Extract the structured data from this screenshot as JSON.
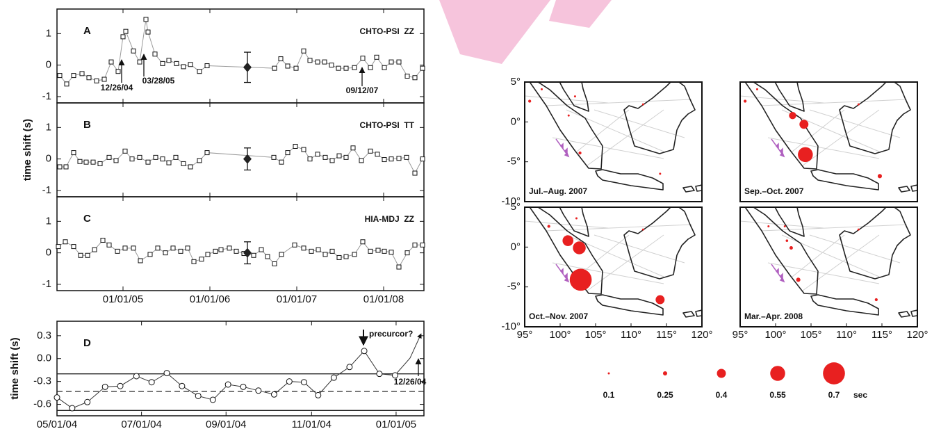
{
  "chart_data": [
    {
      "type": "line",
      "panel": "A",
      "label": "CHTO-PSI  ZZ",
      "marker": "square",
      "x": [
        2004.272,
        2004.352,
        2004.432,
        2004.528,
        2004.608,
        2004.696,
        2004.784,
        2004.864,
        2004.944,
        2005.0,
        2005.032,
        2005.12,
        2005.192,
        2005.264,
        2005.288,
        2005.368,
        2005.456,
        2005.528,
        2005.616,
        2005.696,
        2005.776,
        2005.88,
        2005.968,
        2006.744,
        2006.816,
        2006.896,
        2006.992,
        2007.08,
        2007.152,
        2007.24,
        2007.32,
        2007.4,
        2007.48,
        2007.568,
        2007.664,
        2007.76,
        2007.848,
        2007.92,
        2008.008,
        2008.088,
        2008.176,
        2008.272,
        2008.36,
        2008.448
      ],
      "values": [
        -0.33,
        -0.6,
        -0.33,
        -0.27,
        -0.4,
        -0.5,
        -0.45,
        0.1,
        -0.2,
        0.9,
        1.07,
        0.45,
        0.1,
        1.45,
        1.05,
        0.35,
        0.05,
        0.15,
        0.05,
        -0.05,
        0.02,
        -0.2,
        -0.02,
        -0.1,
        0.2,
        -0.03,
        -0.1,
        0.45,
        0.15,
        0.1,
        0.1,
        0.0,
        -0.1,
        -0.1,
        -0.08,
        0.22,
        -0.08,
        0.25,
        -0.08,
        0.1,
        0.1,
        -0.35,
        -0.4,
        -0.1
      ],
      "mean": {
        "x": 2006.432,
        "value": -0.07,
        "error": 0.48
      },
      "xlim": [
        2004.24,
        2008.464
      ],
      "ylim": [
        -1.2,
        1.78
      ],
      "yticks": [
        -1,
        0,
        1
      ],
      "annotations": [
        "12/26/04",
        "03/28/05",
        "09/12/07"
      ]
    },
    {
      "type": "line",
      "panel": "B",
      "label": "CHTO-PSI  TT",
      "ylabel": "time shift (s)",
      "marker": "square",
      "x": [
        2004.272,
        2004.344,
        2004.432,
        2004.504,
        2004.576,
        2004.656,
        2004.736,
        2004.84,
        2004.92,
        2005.024,
        2005.104,
        2005.192,
        2005.288,
        2005.376,
        2005.456,
        2005.528,
        2005.608,
        2005.696,
        2005.776,
        2005.88,
        2005.968,
        2006.736,
        2006.824,
        2006.896,
        2006.984,
        2007.08,
        2007.152,
        2007.24,
        2007.328,
        2007.408,
        2007.488,
        2007.568,
        2007.648,
        2007.744,
        2007.848,
        2007.928,
        2008.008,
        2008.088,
        2008.176,
        2008.264,
        2008.36,
        2008.448
      ],
      "values": [
        -0.25,
        -0.25,
        0.2,
        -0.08,
        -0.1,
        -0.1,
        -0.15,
        0.05,
        -0.05,
        0.25,
        0,
        0.05,
        -0.1,
        0.05,
        0,
        -0.12,
        0.05,
        -0.15,
        -0.25,
        -0.05,
        0.2,
        0.05,
        -0.1,
        0.2,
        0.4,
        0.3,
        0,
        0.15,
        0.05,
        -0.05,
        0.1,
        0.05,
        0.35,
        -0.05,
        0.25,
        0.15,
        -0.02,
        0,
        0.02,
        0.05,
        -0.45,
        0
      ],
      "mean": {
        "x": 2006.432,
        "value": 0,
        "error": 0.35
      },
      "xlim": [
        2004.24,
        2008.464
      ],
      "ylim": [
        -1.2,
        1.78
      ],
      "yticks": [
        -1,
        0,
        1
      ]
    },
    {
      "type": "line",
      "panel": "C",
      "label": "HIA-MDJ  ZZ",
      "marker": "square",
      "x": [
        2004.256,
        2004.336,
        2004.432,
        2004.512,
        2004.592,
        2004.672,
        2004.768,
        2004.84,
        2004.936,
        2005.024,
        2005.12,
        2005.2,
        2005.312,
        2005.4,
        2005.488,
        2005.576,
        2005.664,
        2005.744,
        2005.816,
        2005.904,
        2005.976,
        2006.064,
        2006.128,
        2006.224,
        2006.304,
        2006.392,
        2006.504,
        2006.592,
        2006.664,
        2006.744,
        2006.824,
        2006.976,
        2007.08,
        2007.168,
        2007.248,
        2007.328,
        2007.408,
        2007.488,
        2007.568,
        2007.664,
        2007.76,
        2007.848,
        2007.936,
        2008.008,
        2008.088,
        2008.176,
        2008.272,
        2008.36,
        2008.448
      ],
      "values": [
        0.2,
        0.35,
        0.2,
        -0.08,
        -0.08,
        0.1,
        0.4,
        0.25,
        0.05,
        0.15,
        0.15,
        -0.25,
        -0.05,
        0.15,
        0,
        0.15,
        0.05,
        0.15,
        -0.28,
        -0.2,
        -0.05,
        0.05,
        0.1,
        0.15,
        0.05,
        -0.02,
        -0.08,
        0.1,
        -0.12,
        -0.35,
        -0.05,
        0.25,
        0.15,
        0.05,
        0.1,
        -0.05,
        0.05,
        -0.15,
        -0.12,
        -0.05,
        0.35,
        0.05,
        0.08,
        0.05,
        0.02,
        -0.45,
        0,
        0.25,
        0.25
      ],
      "mean": {
        "x": 2006.432,
        "value": 0,
        "error": 0.35
      },
      "xlim": [
        2004.24,
        2008.464
      ],
      "ylim": [
        -1.2,
        1.78
      ],
      "yticks": [
        -1,
        0,
        1
      ],
      "xticks": [
        {
          "value": 2005,
          "label": "01/01/05"
        },
        {
          "value": 2006,
          "label": "01/01/06"
        },
        {
          "value": 2007,
          "label": "01/01/07"
        },
        {
          "value": 2008,
          "label": "01/01/08"
        }
      ]
    },
    {
      "type": "line",
      "panel": "D",
      "ylabel": "time shift (s)",
      "marker": "circle",
      "x": [
        2004.33,
        2004.36,
        2004.39,
        2004.425,
        2004.455,
        2004.487,
        2004.517,
        2004.547,
        2004.577,
        2004.609,
        2004.638,
        2004.668,
        2004.698,
        2004.728,
        2004.759,
        2004.789,
        2004.818,
        2004.846,
        2004.877,
        2004.908,
        2004.937,
        2004.967,
        2004.998
      ],
      "values": [
        -0.51,
        -0.65,
        -0.57,
        -0.37,
        -0.36,
        -0.23,
        -0.31,
        -0.19,
        -0.36,
        -0.49,
        -0.54,
        -0.34,
        -0.37,
        -0.42,
        -0.47,
        -0.3,
        -0.31,
        -0.48,
        -0.25,
        -0.11,
        0.1,
        -0.2,
        -0.22
      ],
      "reference_lines": [
        {
          "value": -0.2,
          "style": "solid"
        },
        {
          "value": -0.43,
          "style": "dashed"
        },
        {
          "value": -0.68,
          "style": "solid"
        }
      ],
      "xlim": [
        2004.33,
        2005.055
      ],
      "ylim": [
        -0.75,
        0.49
      ],
      "xticks": [
        {
          "value": 2004.33,
          "label": "05/01/04"
        },
        {
          "value": 2004.497,
          "label": "07/01/04"
        },
        {
          "value": 2004.664,
          "label": "09/01/04"
        },
        {
          "value": 2004.833,
          "label": "11/01/04"
        },
        {
          "value": 2005,
          "label": "01/01/05"
        }
      ],
      "yticks": [
        0.3,
        {
          "value": 0,
          "label": "0.0"
        },
        -0.3,
        -0.6
      ],
      "annotations": [
        "precurcor?",
        "12/26/04"
      ]
    },
    {
      "type": "bubble",
      "title": "Jul.–Aug. 2007",
      "color": "#e82020",
      "x": [
        95.7,
        97.4,
        102.1,
        101.2,
        102.8,
        111.7,
        114.1
      ],
      "values": [
        2.6,
        4.1,
        3.2,
        0.8,
        -3.9,
        2.2,
        -6.5
      ],
      "sizes": [
        0.2,
        0.12,
        0.15,
        0.15,
        0.2,
        0.1,
        0.1
      ],
      "xlim": [
        95,
        120
      ],
      "ylim": [
        -10,
        5
      ],
      "yticks": [
        {
          "value": 5,
          "label": "5°"
        },
        {
          "value": 0,
          "label": "0°"
        },
        {
          "value": -5,
          "label": "-5°"
        },
        {
          "value": -10,
          "label": "-10°"
        }
      ]
    },
    {
      "type": "bubble",
      "title": "Sep.–Oct. 2007",
      "color": "#e82020",
      "x": [
        95.7,
        97.4,
        102.4,
        104,
        104.2,
        114.7,
        111.7
      ],
      "values": [
        2.6,
        4.1,
        0.8,
        -0.3,
        -4.1,
        -6.8,
        2.2
      ],
      "sizes": [
        0.2,
        0.1,
        0.35,
        0.4,
        0.55,
        0.25,
        0.1
      ],
      "xlim": [
        95,
        120
      ],
      "ylim": [
        -10,
        5
      ]
    },
    {
      "type": "bubble",
      "title": "Oct.–Nov. 2007",
      "color": "#e82020",
      "x": [
        98.4,
        102.3,
        101.1,
        102.7,
        102.9,
        114.1,
        111.7
      ],
      "values": [
        2.6,
        3.6,
        0.8,
        -0.1,
        -4.1,
        -6.6,
        2.2
      ],
      "sizes": [
        0.2,
        0.1,
        0.45,
        0.5,
        0.7,
        0.4,
        0.1
      ],
      "xlim": [
        95,
        120
      ],
      "ylim": [
        -10,
        5
      ],
      "xticks": [
        {
          "value": 95,
          "label": "95°"
        },
        {
          "value": 100,
          "label": "100°"
        },
        {
          "value": 105,
          "label": "105°"
        },
        {
          "value": 110,
          "label": "110°"
        },
        {
          "value": 115,
          "label": "115°"
        },
        {
          "value": 120,
          "label": "120°"
        }
      ],
      "yticks": [
        {
          "value": 5,
          "label": "5°"
        },
        {
          "value": 0,
          "label": "0°"
        },
        {
          "value": -5,
          "label": "-5°"
        },
        {
          "value": -10,
          "label": "-10°"
        }
      ]
    },
    {
      "type": "bubble",
      "title": "Mar.–Apr. 2008",
      "color": "#e82020",
      "x": [
        99,
        101.3,
        101.6,
        102.2,
        103.2,
        114.2,
        111.7
      ],
      "values": [
        2.6,
        2.6,
        0.8,
        -0.1,
        -4.1,
        -6.6,
        2.2
      ],
      "sizes": [
        0.12,
        0.1,
        0.18,
        0.22,
        0.25,
        0.2,
        0.1
      ],
      "xlim": [
        95,
        120
      ],
      "ylim": [
        -10,
        5
      ],
      "xticks": [
        {
          "value": 95,
          "label": "95°"
        },
        {
          "value": 100,
          "label": "100°"
        },
        {
          "value": 105,
          "label": "105°"
        },
        {
          "value": 110,
          "label": "110°"
        },
        {
          "value": 115,
          "label": "115°"
        },
        {
          "value": 120,
          "label": "120°"
        }
      ]
    }
  ],
  "size_legend": {
    "values": [
      0.1,
      0.25,
      0.4,
      0.55,
      0.7
    ],
    "unit": "sec",
    "color": "#e82020"
  }
}
